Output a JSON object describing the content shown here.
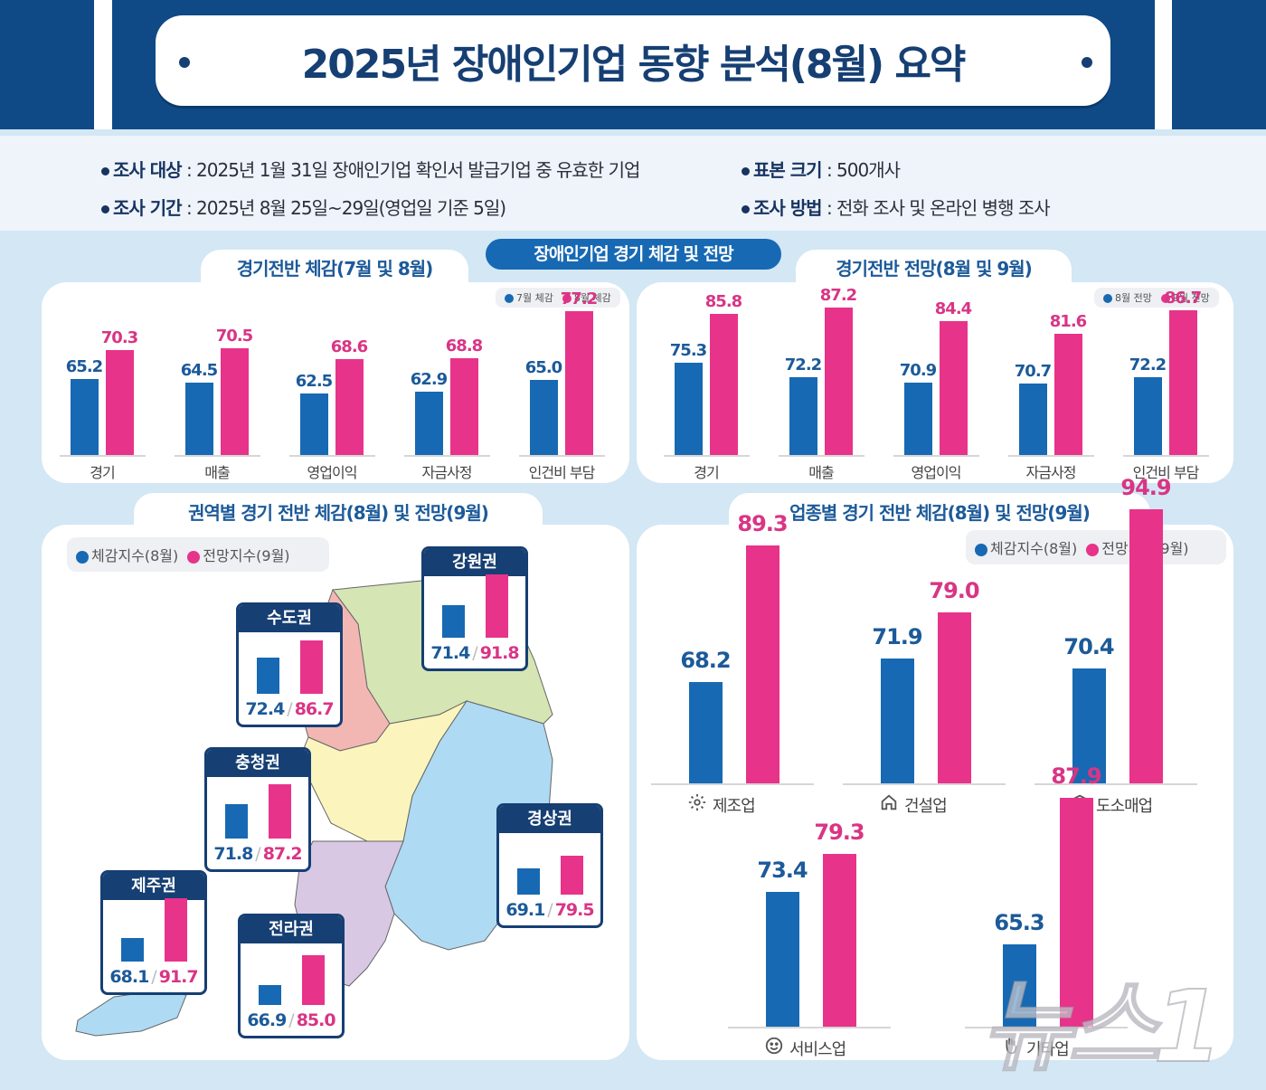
{
  "header": {
    "title": "2025년 장애인기업 동향 분석(8월) 요약"
  },
  "info": {
    "target_label": "조사 대상",
    "target_value": ": 2025년 1월 31일 장애인기업 확인서 발급기업 중 유효한 기업",
    "period_label": "조사 기간",
    "period_value": ": 2025년 8월 25일~29일(영업일 기준 5일)",
    "sample_label": "표본 크기",
    "sample_value": ": 500개사",
    "method_label": "조사 방법",
    "method_value": ":  전화 조사 및 온라인 병행 조사"
  },
  "section_title": "장애인기업 경기 체감 및 전망",
  "colors": {
    "blue": "#1769b3",
    "pink": "#e8338a",
    "navy": "#163f73"
  },
  "chart_data": [
    {
      "type": "bar",
      "title": "경기전반 체감(7월 및 8월)",
      "categories": [
        "경기",
        "매출",
        "영업이익",
        "자금사정",
        "인건비 부담"
      ],
      "series": [
        {
          "name": "7월 체감",
          "values": [
            65.2,
            64.5,
            62.5,
            62.9,
            65.0
          ]
        },
        {
          "name": "8월 체감",
          "values": [
            70.3,
            70.5,
            68.6,
            68.8,
            77.2
          ]
        }
      ],
      "legend_position": "top-right",
      "grid": false
    },
    {
      "type": "bar",
      "title": "경기전반 전망(8월 및 9월)",
      "categories": [
        "경기",
        "매출",
        "영업이익",
        "자금사정",
        "인건비 부담"
      ],
      "series": [
        {
          "name": "8월 전망",
          "values": [
            75.3,
            72.2,
            70.9,
            70.7,
            72.2
          ]
        },
        {
          "name": "9월 전망",
          "values": [
            85.8,
            87.2,
            84.4,
            81.6,
            86.7
          ]
        }
      ],
      "legend_position": "top-right",
      "grid": false
    },
    {
      "type": "bar",
      "title": "권역별 경기 전반 체감(8월) 및 전망(9월)",
      "categories": [
        "수도권",
        "강원권",
        "충청권",
        "경상권",
        "제주권",
        "전라권"
      ],
      "series": [
        {
          "name": "체감지수(8월)",
          "values": [
            72.4,
            71.4,
            71.8,
            69.1,
            68.1,
            66.9
          ]
        },
        {
          "name": "전망지수(9월)",
          "values": [
            86.7,
            91.8,
            87.2,
            79.5,
            91.7,
            85.0
          ]
        }
      ],
      "legend_position": "top-left"
    },
    {
      "type": "bar",
      "title": "업종별 경기 전반 체감(8월) 및 전망(9월)",
      "categories": [
        "제조업",
        "건설업",
        "도소매업",
        "서비스업",
        "기타업"
      ],
      "series": [
        {
          "name": "체감지수(8월)",
          "values": [
            68.2,
            71.9,
            70.4,
            73.4,
            65.3
          ]
        },
        {
          "name": "전망지수(9월)",
          "values": [
            89.3,
            79.0,
            94.9,
            79.3,
            87.9
          ]
        }
      ],
      "legend_position": "top-right"
    }
  ],
  "charts": {
    "c1": {
      "title": "경기전반 체감(7월 및 8월)",
      "legend": [
        "7월 체감",
        "8월 체감"
      ],
      "items": [
        {
          "cat": "경기",
          "a": "65.2",
          "b": "70.3"
        },
        {
          "cat": "매출",
          "a": "64.5",
          "b": "70.5"
        },
        {
          "cat": "영업이익",
          "a": "62.5",
          "b": "68.6"
        },
        {
          "cat": "자금사정",
          "a": "62.9",
          "b": "68.8"
        },
        {
          "cat": "인건비 부담",
          "a": "65.0",
          "b": "77.2"
        }
      ]
    },
    "c2": {
      "title": "경기전반 전망(8월 및 9월)",
      "legend": [
        "8월 전망",
        "9월 전망"
      ],
      "items": [
        {
          "cat": "경기",
          "a": "75.3",
          "b": "85.8"
        },
        {
          "cat": "매출",
          "a": "72.2",
          "b": "87.2"
        },
        {
          "cat": "영업이익",
          "a": "70.9",
          "b": "84.4"
        },
        {
          "cat": "자금사정",
          "a": "70.7",
          "b": "81.6"
        },
        {
          "cat": "인건비 부담",
          "a": "72.2",
          "b": "86.7"
        }
      ]
    },
    "regions": {
      "title": "권역별 경기 전반 체감(8월) 및 전망(9월)",
      "legend": [
        "체감지수(8월)",
        "전망지수(9월)"
      ],
      "items": [
        {
          "name": "강원권",
          "a": "71.4",
          "b": "91.8"
        },
        {
          "name": "수도권",
          "a": "72.4",
          "b": "86.7"
        },
        {
          "name": "충청권",
          "a": "71.8",
          "b": "87.2"
        },
        {
          "name": "경상권",
          "a": "69.1",
          "b": "79.5"
        },
        {
          "name": "제주권",
          "a": "68.1",
          "b": "91.7"
        },
        {
          "name": "전라권",
          "a": "66.9",
          "b": "85.0"
        }
      ]
    },
    "industry": {
      "title": "업종별 경기 전반 체감(8월) 및 전망(9월)",
      "legend": [
        "체감지수(8월)",
        "전망지수(9월)"
      ],
      "items": [
        {
          "cat": "제조업",
          "icon": "gear-icon",
          "a": "68.2",
          "b": "89.3"
        },
        {
          "cat": "건설업",
          "icon": "house-icon",
          "a": "71.9",
          "b": "79.0"
        },
        {
          "cat": "도소매업",
          "icon": "box-clock-icon",
          "a": "70.4",
          "b": "94.9"
        },
        {
          "cat": "서비스업",
          "icon": "smile-icon",
          "a": "73.4",
          "b": "79.3"
        },
        {
          "cat": "기타업",
          "icon": "hand-icon",
          "a": "65.3",
          "b": "87.9"
        }
      ]
    }
  },
  "watermark": "뉴스1"
}
